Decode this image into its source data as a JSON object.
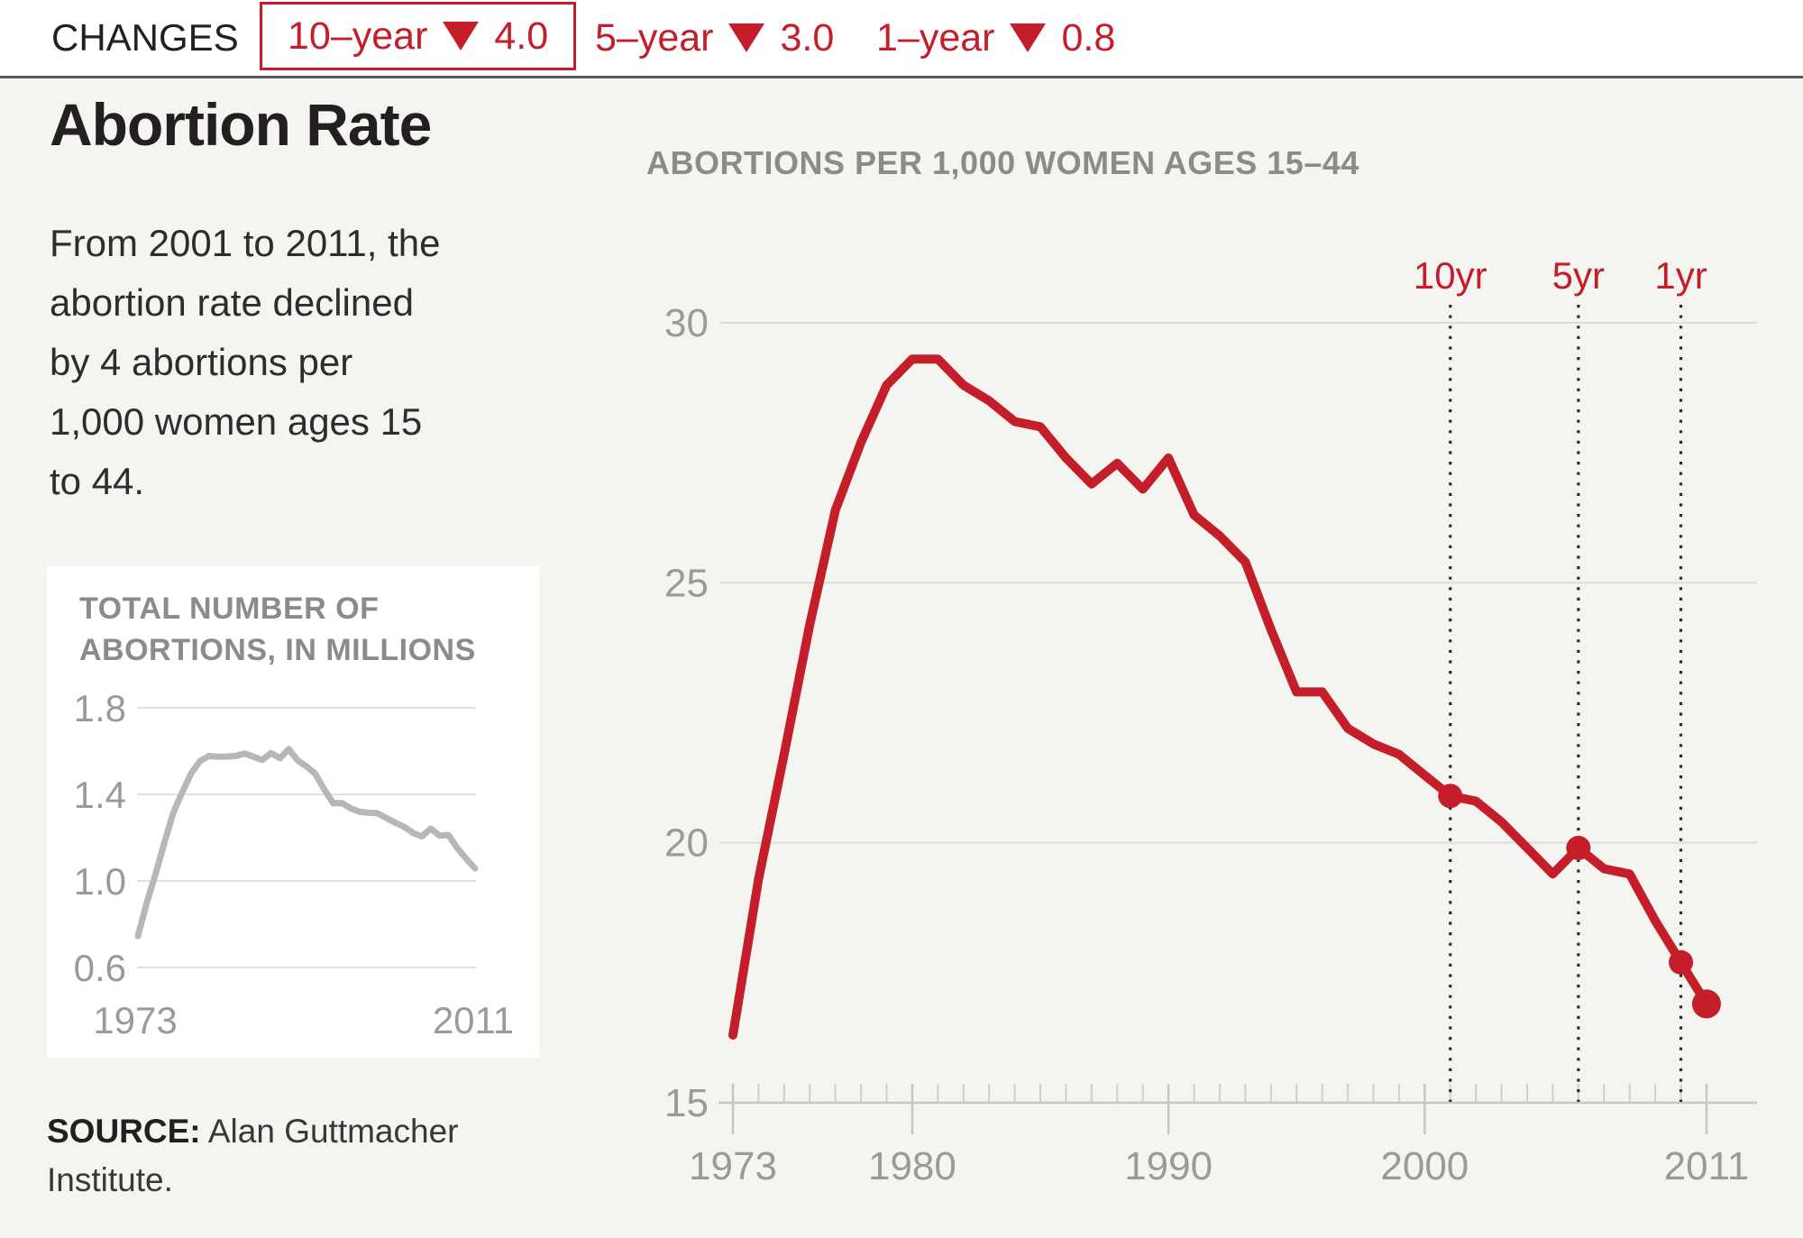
{
  "header": {
    "label": "CHANGES",
    "items": [
      {
        "period": "10–year",
        "direction": "down",
        "value": "4.0",
        "boxed": true
      },
      {
        "period": "5–year",
        "direction": "down",
        "value": "3.0",
        "boxed": false
      },
      {
        "period": "1–year",
        "direction": "down",
        "value": "0.8",
        "boxed": false
      }
    ]
  },
  "left": {
    "title": "Abortion Rate",
    "description_lines": [
      "From 2001 to 2011, the",
      "abortion rate declined",
      "by 4 abortions per",
      "1,000 women ages 15",
      "to 44."
    ],
    "source_label": "SOURCE:",
    "source_text": " Alan Guttmacher Institute."
  },
  "colors": {
    "accent_red": "#c41e2a",
    "chart_line_red": "#c41e2a",
    "inset_line_gray": "#b7b7b5",
    "main_gridline": "#dcdcd9",
    "inset_gridline": "#e2e2df",
    "axis_gray": "#c6c6c3",
    "minor_tick_gray": "#cfcfcc",
    "label_gray": "#9b9a98",
    "dotted_line_dark": "#2e2b2c",
    "page_background": "#f4f4f1",
    "card_background": "#ffffff"
  },
  "chart_data": [
    {
      "type": "line",
      "title": "ABORTIONS PER 1,000 WOMEN AGES 15–44",
      "years": [
        1973,
        1974,
        1975,
        1976,
        1977,
        1978,
        1979,
        1980,
        1981,
        1982,
        1983,
        1984,
        1985,
        1986,
        1987,
        1988,
        1989,
        1990,
        1991,
        1992,
        1993,
        1994,
        1995,
        1996,
        1997,
        1998,
        1999,
        2000,
        2001,
        2002,
        2003,
        2004,
        2005,
        2006,
        2007,
        2008,
        2009,
        2010,
        2011
      ],
      "values": [
        16.3,
        19.3,
        21.7,
        24.2,
        26.4,
        27.7,
        28.8,
        29.3,
        29.3,
        28.8,
        28.5,
        28.1,
        28.0,
        27.4,
        26.9,
        27.3,
        26.8,
        27.4,
        26.3,
        25.9,
        25.4,
        24.1,
        22.9,
        22.9,
        22.2,
        21.9,
        21.7,
        21.3,
        20.9,
        20.8,
        20.4,
        19.9,
        19.4,
        19.9,
        19.5,
        19.4,
        18.5,
        17.7,
        16.9
      ],
      "ylim": [
        15,
        30
      ],
      "yticks": [
        15,
        20,
        25,
        30
      ],
      "xticks_labeled": [
        1973,
        1980,
        1990,
        2000,
        2011
      ],
      "grid": true,
      "annotations": [
        {
          "label": "10yr",
          "year": 2001
        },
        {
          "label": "5yr",
          "year": 2006
        },
        {
          "label": "1yr",
          "year": 2010
        }
      ],
      "marker_years": [
        2001,
        2006,
        2010,
        2011
      ]
    },
    {
      "type": "line",
      "title_lines": [
        "TOTAL NUMBER OF",
        "ABORTIONS, IN MILLIONS"
      ],
      "years": [
        1973,
        1974,
        1975,
        1976,
        1977,
        1978,
        1979,
        1980,
        1981,
        1982,
        1983,
        1984,
        1985,
        1986,
        1987,
        1988,
        1989,
        1990,
        1991,
        1992,
        1993,
        1994,
        1995,
        1996,
        1997,
        1998,
        1999,
        2000,
        2001,
        2002,
        2003,
        2004,
        2005,
        2006,
        2007,
        2008,
        2009,
        2010,
        2011
      ],
      "values": [
        0.745,
        0.899,
        1.034,
        1.179,
        1.317,
        1.41,
        1.498,
        1.554,
        1.577,
        1.574,
        1.575,
        1.577,
        1.589,
        1.574,
        1.559,
        1.591,
        1.567,
        1.609,
        1.557,
        1.529,
        1.495,
        1.423,
        1.359,
        1.36,
        1.335,
        1.319,
        1.315,
        1.313,
        1.291,
        1.269,
        1.25,
        1.222,
        1.206,
        1.242,
        1.209,
        1.212,
        1.152,
        1.102,
        1.058
      ],
      "ylim": [
        0.6,
        1.8
      ],
      "yticks": [
        0.6,
        1.0,
        1.4,
        1.8
      ],
      "xtick_labels": [
        {
          "label": "1973",
          "year": 1973
        },
        {
          "label": "2011",
          "year": 2011
        }
      ],
      "grid": true
    }
  ]
}
